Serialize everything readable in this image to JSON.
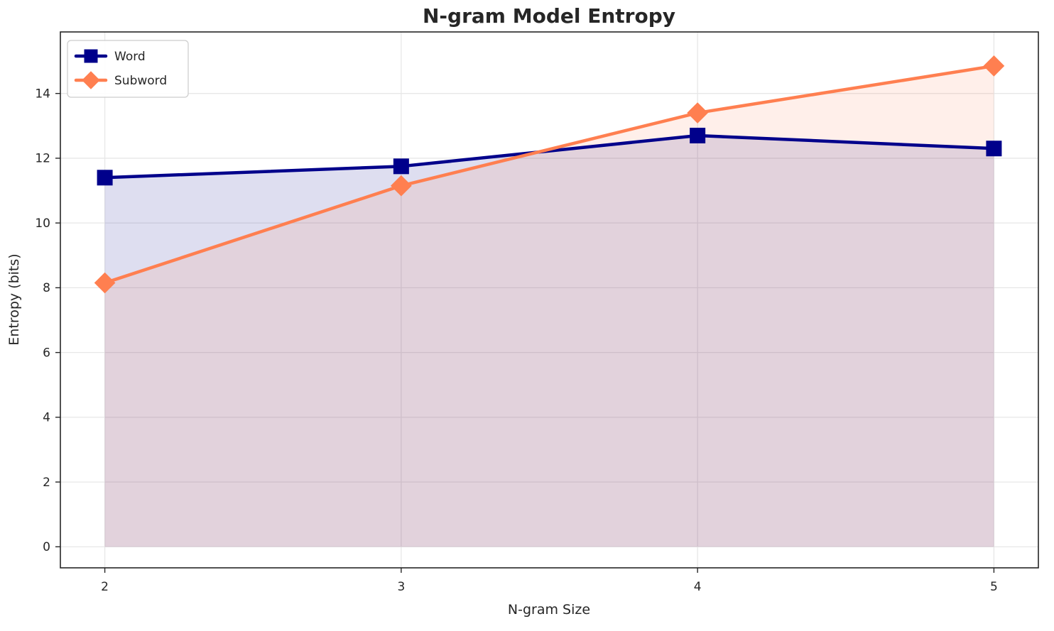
{
  "chart": {
    "title": "N-gram Model Entropy",
    "xlabel": "N-gram Size",
    "ylabel": "Entropy (bits)"
  },
  "chart_data": {
    "type": "line",
    "title": "N-gram Model Entropy",
    "xlabel": "N-gram Size",
    "ylabel": "Entropy (bits)",
    "x": [
      2,
      3,
      4,
      5
    ],
    "series": [
      {
        "name": "Word",
        "values": [
          11.4,
          11.75,
          12.7,
          12.3
        ],
        "color": "#00008B",
        "marker": "square",
        "fill_opacity": 0.13,
        "line_width": 4.5
      },
      {
        "name": "Subword",
        "values": [
          8.15,
          11.15,
          13.4,
          14.85
        ],
        "color": "#FF7F50",
        "marker": "diamond",
        "fill_opacity": 0.12,
        "line_width": 4.5
      }
    ],
    "x_ticks": [
      2,
      3,
      4,
      5
    ],
    "y_ticks": [
      0,
      2,
      4,
      6,
      8,
      10,
      12,
      14
    ],
    "xlim": [
      1.85,
      5.15
    ],
    "ylim": [
      -0.65,
      15.9
    ],
    "area_baseline": 0,
    "grid": true,
    "grid_color": "#e7e7e7",
    "spine_color": "#262626",
    "legend_position": "upper left",
    "background_color": "#ffffff"
  }
}
